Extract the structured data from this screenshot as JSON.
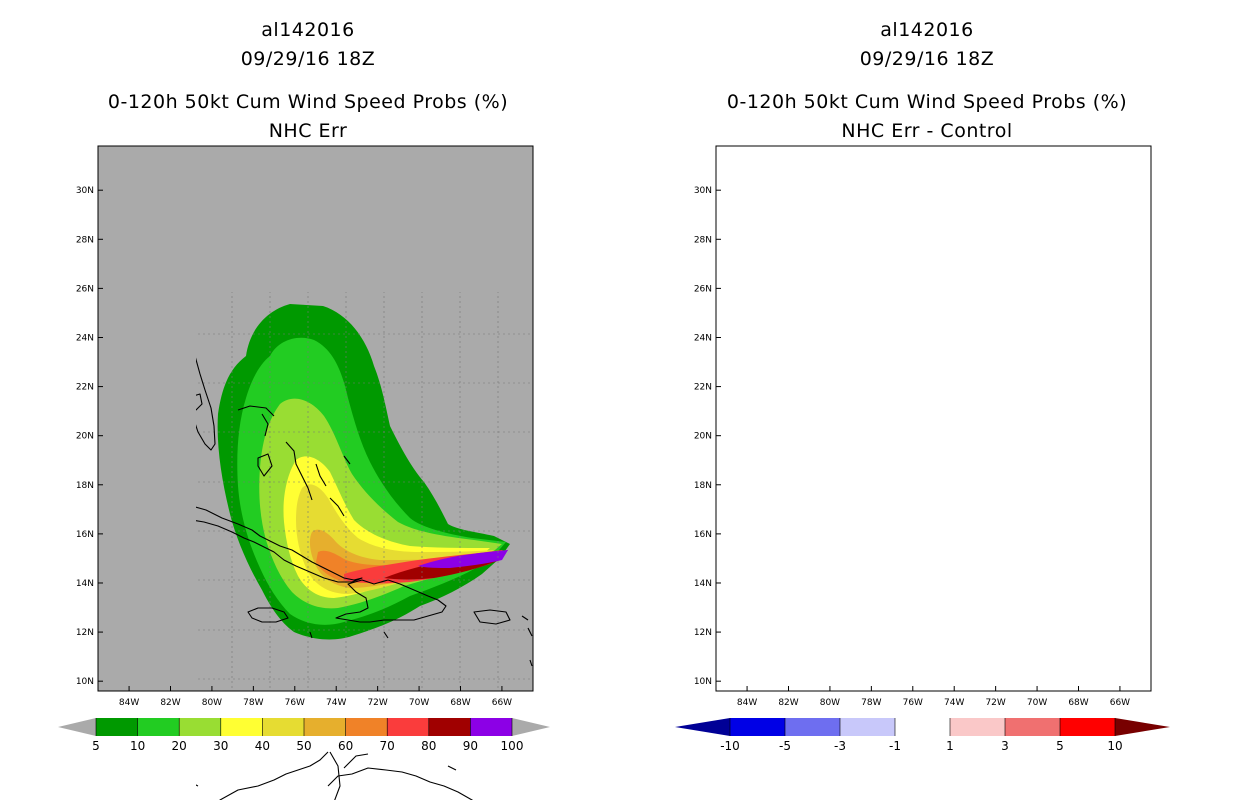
{
  "chart_data": [
    {
      "type": "heatmap",
      "title_lines": [
        "al142016",
        "09/29/16 18Z"
      ],
      "subtitle_lines": [
        "0-120h 50kt Cum Wind Speed Probs (%)",
        "NHC Err"
      ],
      "x_ticks": [
        "84W",
        "82W",
        "80W",
        "78W",
        "76W",
        "74W",
        "72W",
        "70W",
        "68W",
        "66W"
      ],
      "y_ticks": [
        "10N",
        "12N",
        "14N",
        "16N",
        "18N",
        "20N",
        "22N",
        "24N",
        "26N",
        "28N",
        "30N"
      ],
      "xlim_deg_west": [
        85.5,
        64.5
      ],
      "ylim_deg_north": [
        9.6,
        31.8
      ],
      "units": "%",
      "colorbar": {
        "labels": [
          "5",
          "10",
          "20",
          "30",
          "40",
          "50",
          "60",
          "70",
          "80",
          "90",
          "100"
        ],
        "colors": [
          "#009900",
          "#22cc22",
          "#99dd33",
          "#ffff33",
          "#e6dc32",
          "#e6af2d",
          "#f08228",
          "#fa3c3c",
          "#a00000",
          "#8c00e6"
        ],
        "under_color": "#aaaaaa",
        "over_color": "#aaaaaa"
      },
      "background_color": "#aaaaaa"
    },
    {
      "type": "heatmap",
      "title_lines": [
        "al142016",
        "09/29/16 18Z"
      ],
      "subtitle_lines": [
        "0-120h 50kt Cum Wind Speed Probs (%)",
        "NHC Err - Control"
      ],
      "x_ticks": [
        "84W",
        "82W",
        "80W",
        "78W",
        "76W",
        "74W",
        "72W",
        "70W",
        "68W",
        "66W"
      ],
      "y_ticks": [
        "10N",
        "12N",
        "14N",
        "16N",
        "18N",
        "20N",
        "22N",
        "24N",
        "26N",
        "28N",
        "30N"
      ],
      "xlim_deg_west": [
        85.5,
        64.5
      ],
      "ylim_deg_north": [
        9.6,
        31.8
      ],
      "units": "%",
      "colorbar": {
        "labels": [
          "-10",
          "-5",
          "-3",
          "-1",
          "1",
          "3",
          "5",
          "10"
        ],
        "colors": [
          "#0000e6",
          "#6e6ef0",
          "#c8c8fa",
          "#ffffff",
          "#fac8c8",
          "#f07070",
          "#ff0000"
        ],
        "under_color": "#000096",
        "over_color": "#780000"
      },
      "background_color": "#ffffff"
    }
  ]
}
